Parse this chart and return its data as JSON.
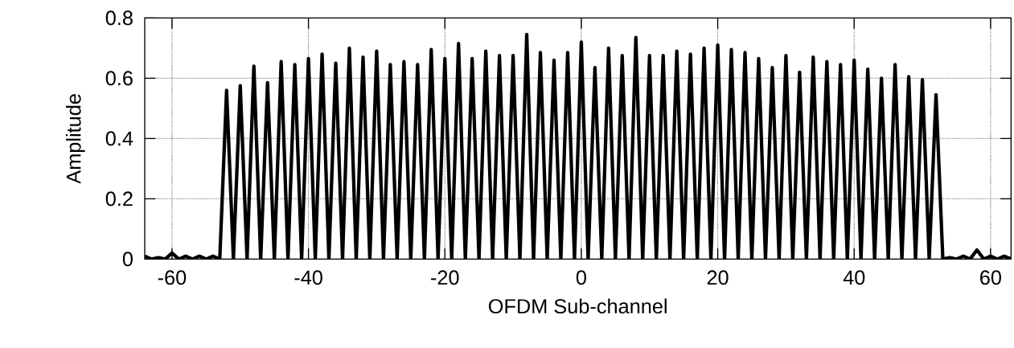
{
  "chart_data": {
    "type": "line",
    "xlabel": "OFDM Sub-channel",
    "ylabel": "Amplitude",
    "color": "#000000",
    "grid": true,
    "line_style": "solid",
    "xlim": [
      -64,
      63
    ],
    "ylim": [
      0,
      0.8
    ],
    "xticks": [
      -60,
      -40,
      -20,
      0,
      20,
      40,
      60
    ],
    "yticks": [
      0,
      0.2,
      0.4,
      0.6,
      0.8
    ],
    "x": [
      -64,
      -63,
      -62,
      -61,
      -60,
      -59,
      -58,
      -57,
      -56,
      -55,
      -54,
      -53,
      -52,
      -51,
      -50,
      -49,
      -48,
      -47,
      -46,
      -45,
      -44,
      -43,
      -42,
      -41,
      -40,
      -39,
      -38,
      -37,
      -36,
      -35,
      -34,
      -33,
      -32,
      -31,
      -30,
      -29,
      -28,
      -27,
      -26,
      -25,
      -24,
      -23,
      -22,
      -21,
      -20,
      -19,
      -18,
      -17,
      -16,
      -15,
      -14,
      -13,
      -12,
      -11,
      -10,
      -9,
      -8,
      -7,
      -6,
      -5,
      -4,
      -3,
      -2,
      -1,
      0,
      1,
      2,
      3,
      4,
      5,
      6,
      7,
      8,
      9,
      10,
      11,
      12,
      13,
      14,
      15,
      16,
      17,
      18,
      19,
      20,
      21,
      22,
      23,
      24,
      25,
      26,
      27,
      28,
      29,
      30,
      31,
      32,
      33,
      34,
      35,
      36,
      37,
      38,
      39,
      40,
      41,
      42,
      43,
      44,
      45,
      46,
      47,
      48,
      49,
      50,
      51,
      52,
      53,
      54,
      55,
      56,
      57,
      58,
      59,
      60,
      61,
      62,
      63
    ],
    "values": [
      0.01,
      0,
      0.005,
      0,
      0.02,
      0,
      0.01,
      0,
      0.01,
      0,
      0.01,
      0,
      0.56,
      0,
      0.575,
      0,
      0.64,
      0,
      0.585,
      0,
      0.655,
      0,
      0.645,
      0,
      0.665,
      0,
      0.68,
      0,
      0.65,
      0,
      0.7,
      0,
      0.67,
      0,
      0.69,
      0,
      0.645,
      0,
      0.655,
      0,
      0.645,
      0,
      0.695,
      0,
      0.665,
      0,
      0.715,
      0,
      0.665,
      0,
      0.69,
      0,
      0.675,
      0,
      0.675,
      0,
      0.745,
      0,
      0.685,
      0,
      0.66,
      0,
      0.685,
      0,
      0.72,
      0,
      0.635,
      0,
      0.7,
      0,
      0.675,
      0,
      0.735,
      0,
      0.675,
      0,
      0.675,
      0,
      0.69,
      0,
      0.68,
      0,
      0.7,
      0,
      0.71,
      0,
      0.695,
      0,
      0.685,
      0,
      0.665,
      0,
      0.635,
      0,
      0.675,
      0,
      0.62,
      0,
      0.67,
      0,
      0.655,
      0,
      0.645,
      0,
      0.66,
      0,
      0.63,
      0,
      0.6,
      0,
      0.645,
      0,
      0.605,
      0,
      0.595,
      0,
      0.545,
      0,
      0.005,
      0,
      0.01,
      0,
      0.03,
      0,
      0.01,
      0,
      0.01,
      0
    ]
  }
}
